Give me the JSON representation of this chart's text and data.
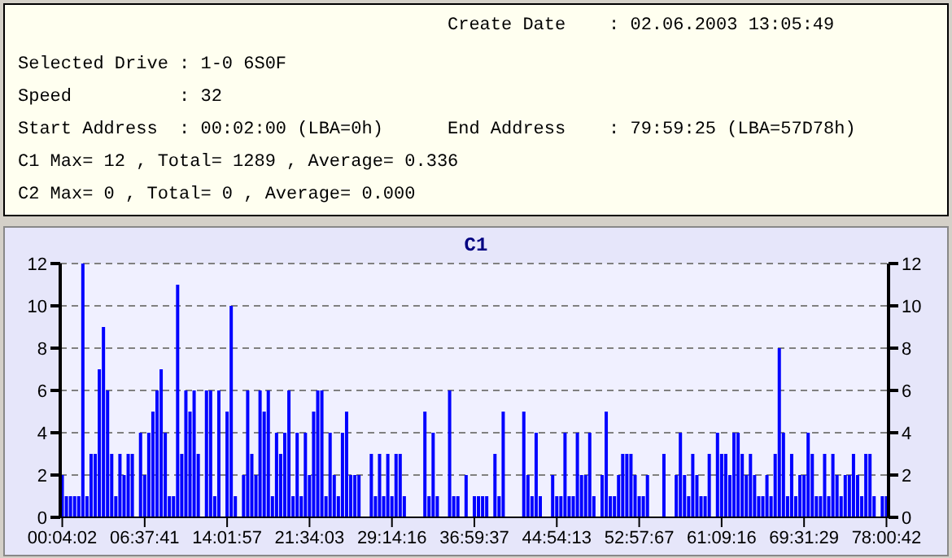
{
  "chart_data": {
    "type": "bar",
    "title": "C1",
    "annotations": [
      "Create Date    : 02.06.2003 13:05:49",
      "Selected Drive : 1-0 6S0F",
      "Speed          : 32",
      "Start Address  : 00:02:00 (LBA=0h)",
      "End Address    : 79:59:25 (LBA=57D78h)",
      "C1 Max= 12 , Total= 1289 , Average= 0.336",
      "C2 Max= 0 , Total= 0 , Average= 0.000"
    ],
    "categories": [
      "00:04:02",
      null,
      null,
      null,
      null,
      null,
      null,
      null,
      null,
      null,
      null,
      null,
      null,
      null,
      null,
      null,
      null,
      null,
      null,
      null,
      "06:37:41",
      null,
      null,
      null,
      null,
      null,
      null,
      null,
      null,
      null,
      null,
      null,
      null,
      null,
      null,
      null,
      null,
      null,
      null,
      null,
      "14:01:57",
      null,
      null,
      null,
      null,
      null,
      null,
      null,
      null,
      null,
      null,
      null,
      null,
      null,
      null,
      null,
      null,
      null,
      null,
      null,
      "21:34:03",
      null,
      null,
      null,
      null,
      null,
      null,
      null,
      null,
      null,
      null,
      null,
      null,
      null,
      null,
      null,
      null,
      null,
      null,
      null,
      "29:14:16",
      null,
      null,
      null,
      null,
      null,
      null,
      null,
      null,
      null,
      null,
      null,
      null,
      null,
      null,
      null,
      null,
      null,
      null,
      null,
      "36:59:37",
      null,
      null,
      null,
      null,
      null,
      null,
      null,
      null,
      null,
      null,
      null,
      null,
      null,
      null,
      null,
      null,
      null,
      null,
      null,
      "44:54:13",
      null,
      null,
      null,
      null,
      null,
      null,
      null,
      null,
      null,
      null,
      null,
      null,
      null,
      null,
      null,
      null,
      null,
      null,
      null,
      "52:57:67",
      null,
      null,
      null,
      null,
      null,
      null,
      null,
      null,
      null,
      null,
      null,
      null,
      null,
      null,
      null,
      null,
      null,
      null,
      null,
      "61:09:16",
      null,
      null,
      null,
      null,
      null,
      null,
      null,
      null,
      null,
      null,
      null,
      null,
      null,
      null,
      null,
      null,
      null,
      null,
      null,
      "69:31:29",
      null,
      null,
      null,
      null,
      null,
      null,
      null,
      null,
      null,
      null,
      null,
      null,
      null,
      null,
      null,
      null,
      null,
      null,
      null,
      "78:00:42"
    ],
    "series": [
      {
        "color": "#0000ff",
        "values": [
          2,
          1,
          1,
          1,
          1,
          12,
          1,
          3,
          3,
          7,
          9,
          6,
          3,
          1,
          3,
          2,
          3,
          3,
          0,
          4,
          2,
          4,
          5,
          6,
          7,
          4,
          1,
          1,
          11,
          3,
          6,
          5,
          6,
          3,
          0,
          6,
          6,
          1,
          6,
          0,
          5,
          10,
          1,
          0,
          2,
          6,
          3,
          2,
          6,
          5,
          6,
          1,
          4,
          3,
          4,
          6,
          1,
          4,
          1,
          4,
          2,
          5,
          6,
          6,
          1,
          4,
          2,
          1,
          4,
          5,
          2,
          2,
          2,
          0,
          0,
          3,
          1,
          3,
          1,
          3,
          1,
          3,
          3,
          1,
          0,
          0,
          0,
          0,
          5,
          1,
          4,
          1,
          0,
          0,
          6,
          1,
          1,
          0,
          2,
          0,
          1,
          1,
          1,
          1,
          0,
          3,
          1,
          5,
          0,
          0,
          0,
          0,
          5,
          2,
          1,
          4,
          1,
          0,
          0,
          2,
          1,
          1,
          4,
          1,
          1,
          4,
          2,
          2,
          4,
          1,
          0,
          2,
          5,
          1,
          1,
          2,
          3,
          3,
          3,
          2,
          1,
          1,
          2,
          0,
          0,
          0,
          3,
          0,
          0,
          2,
          4,
          2,
          1,
          3,
          2,
          1,
          1,
          3,
          0,
          4,
          3,
          3,
          2,
          4,
          4,
          3,
          2,
          3,
          2,
          1,
          1,
          2,
          1,
          3,
          8,
          4,
          1,
          3,
          1,
          2,
          2,
          4,
          3,
          1,
          1,
          3,
          1,
          3,
          2,
          1,
          2,
          2,
          3,
          2,
          1,
          3,
          3,
          1,
          0,
          1,
          1
        ]
      }
    ],
    "ylim": [
      0,
      12
    ],
    "yticks": [
      0,
      2,
      4,
      6,
      8,
      10,
      12
    ],
    "y2lim": [
      0,
      12
    ],
    "y2ticks": [
      0,
      2,
      4,
      6,
      8,
      10,
      12
    ],
    "grid": "y"
  }
}
